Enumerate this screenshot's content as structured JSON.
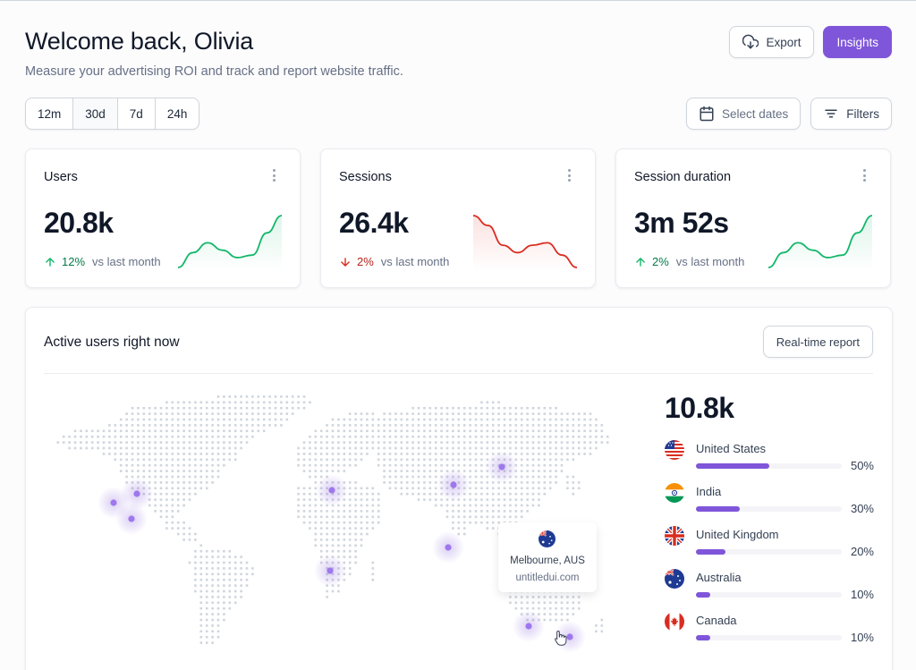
{
  "header": {
    "title": "Welcome back, Olivia",
    "subtitle": "Measure your advertising ROI and track and report website traffic.",
    "export_label": "Export",
    "insights_label": "Insights",
    "export_icon": "cloud-download-icon"
  },
  "time_range": {
    "options": [
      "12m",
      "30d",
      "7d",
      "24h"
    ],
    "selected": "30d"
  },
  "filters": {
    "select_dates_label": "Select dates",
    "filters_label": "Filters",
    "calendar_icon": "calendar-icon",
    "filter_icon": "filter-lines-icon"
  },
  "colors": {
    "accent": "#7f56d9",
    "positive": "#12b76a",
    "positive_text": "#027a48",
    "negative": "#d92d20",
    "negative_text": "#b42318"
  },
  "kpis": [
    {
      "title": "Users",
      "value": "20.8k",
      "direction": "up",
      "change": "12%",
      "vs": "vs last month",
      "trend": [
        2,
        14,
        22,
        16,
        10,
        12,
        30,
        44
      ]
    },
    {
      "title": "Sessions",
      "value": "26.4k",
      "direction": "down",
      "change": "2%",
      "vs": "vs last month",
      "trend": [
        44,
        36,
        20,
        14,
        20,
        22,
        12,
        2
      ]
    },
    {
      "title": "Session duration",
      "value": "3m 52s",
      "direction": "up",
      "change": "2%",
      "vs": "vs last month",
      "trend": [
        2,
        14,
        22,
        16,
        10,
        12,
        30,
        44
      ]
    }
  ],
  "active_users": {
    "title": "Active users right now",
    "report_button": "Real-time report",
    "total": "10.8k",
    "countries": [
      {
        "name": "United States",
        "percent": 50,
        "label": "50%",
        "flag": "us-flag-icon"
      },
      {
        "name": "India",
        "percent": 30,
        "label": "30%",
        "flag": "in-flag-icon"
      },
      {
        "name": "United Kingdom",
        "percent": 20,
        "label": "20%",
        "flag": "gb-flag-icon"
      },
      {
        "name": "Australia",
        "percent": 10,
        "label": "10%",
        "flag": "au-flag-icon"
      },
      {
        "name": "Canada",
        "percent": 10,
        "label": "10%",
        "flag": "ca-flag-icon"
      }
    ],
    "tooltip": {
      "city": "Melbourne, AUS",
      "site": "untitledui.com",
      "flag": "au-flag-icon"
    },
    "markers": [
      {
        "place": "US west coast"
      },
      {
        "place": "US north"
      },
      {
        "place": "US south-west"
      },
      {
        "place": "Europe"
      },
      {
        "place": "Africa"
      },
      {
        "place": "Central Asia"
      },
      {
        "place": "East Asia"
      },
      {
        "place": "India"
      },
      {
        "place": "Melbourne"
      },
      {
        "place": "New Zealand"
      }
    ]
  }
}
